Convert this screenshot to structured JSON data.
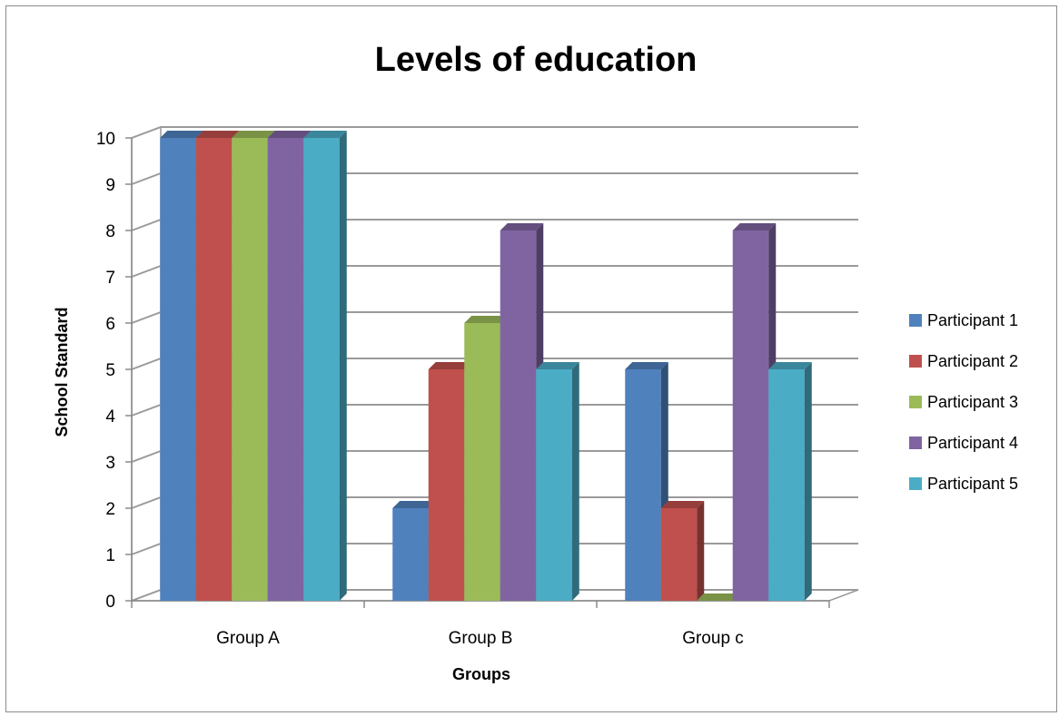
{
  "chart_data": {
    "type": "bar",
    "style": "3d-clustered-column",
    "title": "Levels of education",
    "xlabel": "Groups",
    "ylabel": "School Standard",
    "categories": [
      "Group A",
      "Group B",
      "Group c"
    ],
    "series": [
      {
        "name": "Participant 1",
        "values": [
          10,
          2,
          5
        ],
        "color": "#4F81BD"
      },
      {
        "name": "Participant 2",
        "values": [
          10,
          5,
          2
        ],
        "color": "#C0504D"
      },
      {
        "name": "Participant 3",
        "values": [
          10,
          6,
          0
        ],
        "color": "#9BBB59"
      },
      {
        "name": "Participant 4",
        "values": [
          10,
          8,
          8
        ],
        "color": "#8064A2"
      },
      {
        "name": "Participant 5",
        "values": [
          10,
          5,
          5
        ],
        "color": "#4BACC6"
      }
    ],
    "ylim": [
      0,
      10
    ],
    "yticks": [
      "0",
      "1",
      "2",
      "3",
      "4",
      "5",
      "6",
      "7",
      "8",
      "9",
      "10"
    ],
    "grid": true,
    "legend_position": "right"
  }
}
